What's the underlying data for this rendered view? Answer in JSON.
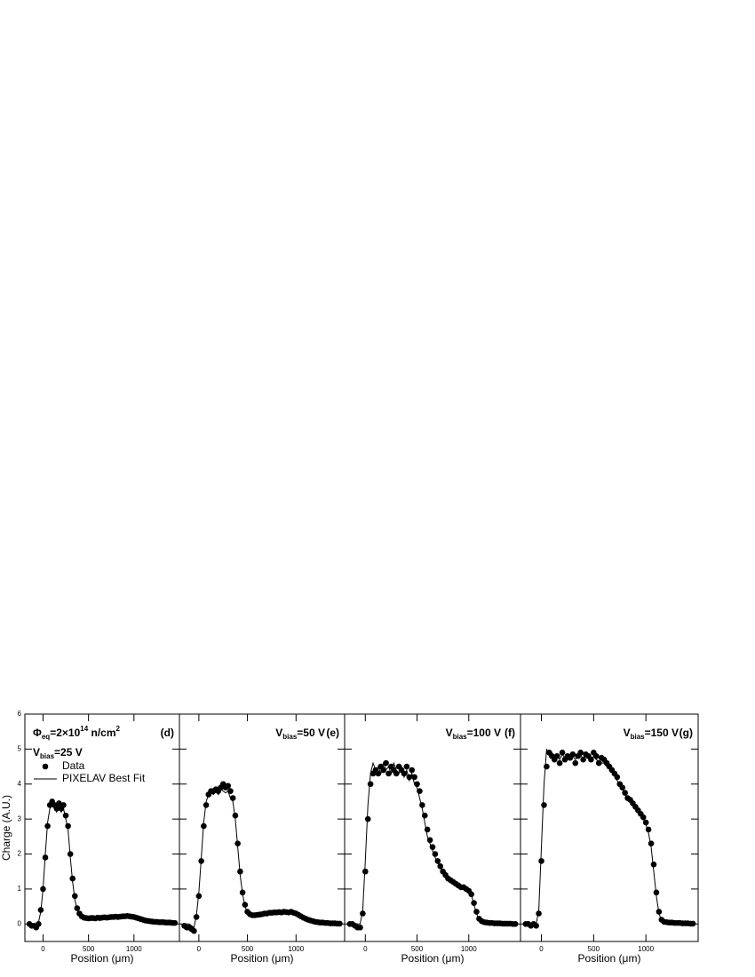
{
  "chart_data": [
    {
      "type": "scatter",
      "label": "(d)",
      "fluence": [
        {
          "text": "Φ"
        },
        {
          "text": "eq",
          "shift": "sub"
        },
        {
          "text": "=2×10"
        },
        {
          "text": "14",
          "shift": "sup"
        },
        {
          "text": " n/cm"
        },
        {
          "text": "2",
          "shift": "sup"
        }
      ],
      "bias": [
        {
          "text": "V"
        },
        {
          "text": "bias",
          "shift": "sub"
        },
        {
          "text": "=25 V"
        }
      ],
      "xlabel": "Position (μm)",
      "ylabel": "Charge (A.U.)",
      "legend": "upper left",
      "xlim": [
        -200,
        1500
      ],
      "ylim": [
        -0.5,
        6
      ],
      "xticks": [
        0,
        500,
        1000
      ],
      "yticks": [
        0,
        1,
        2,
        3,
        4,
        5,
        6
      ],
      "ytick_labels": true,
      "x": [
        -150,
        -125,
        -100,
        -75,
        -50,
        -25,
        0,
        25,
        50,
        75,
        100,
        125,
        150,
        175,
        200,
        225,
        250,
        275,
        300,
        325,
        350,
        375,
        400,
        425,
        450,
        475,
        500,
        525,
        550,
        575,
        600,
        625,
        650,
        675,
        700,
        725,
        750,
        775,
        800,
        825,
        850,
        875,
        900,
        925,
        950,
        975,
        1000,
        1025,
        1050,
        1075,
        1100,
        1125,
        1150,
        1175,
        1200,
        1225,
        1250,
        1275,
        1300,
        1325,
        1350,
        1375,
        1400,
        1425,
        1450
      ],
      "series": [
        {
          "name": "Data",
          "mark": "dot",
          "color": "#000000",
          "values": [
            0.0,
            -0.05,
            -0.05,
            -0.1,
            0.0,
            0.4,
            1.0,
            1.9,
            2.8,
            3.4,
            3.5,
            3.4,
            3.3,
            3.45,
            3.3,
            3.4,
            3.1,
            2.8,
            2.0,
            1.3,
            0.8,
            0.45,
            0.3,
            0.22,
            0.18,
            0.17,
            0.16,
            0.17,
            0.17,
            0.16,
            0.18,
            0.17,
            0.18,
            0.19,
            0.18,
            0.19,
            0.2,
            0.2,
            0.21,
            0.2,
            0.21,
            0.22,
            0.22,
            0.23,
            0.22,
            0.21,
            0.2,
            0.18,
            0.16,
            0.14,
            0.12,
            0.1,
            0.09,
            0.08,
            0.07,
            0.06,
            0.06,
            0.05,
            0.05,
            0.05,
            0.04,
            0.04,
            0.04,
            0.03,
            0.03
          ]
        },
        {
          "name": "PIXELAV Best Fit",
          "mark": "line",
          "color": "#000000",
          "values": [
            0,
            0,
            0,
            0,
            0.05,
            0.35,
            1.0,
            2.0,
            2.9,
            3.3,
            3.4,
            3.3,
            3.2,
            3.35,
            3.2,
            3.3,
            3.0,
            2.7,
            1.9,
            1.2,
            0.7,
            0.4,
            0.25,
            0.2,
            0.18,
            0.17,
            0.16,
            0.16,
            0.17,
            0.17,
            0.17,
            0.18,
            0.18,
            0.18,
            0.19,
            0.19,
            0.2,
            0.2,
            0.2,
            0.21,
            0.21,
            0.21,
            0.22,
            0.22,
            0.22,
            0.21,
            0.2,
            0.18,
            0.16,
            0.14,
            0.12,
            0.1,
            0.09,
            0.08,
            0.07,
            0.06,
            0.06,
            0.05,
            0.05,
            0.05,
            0.04,
            0.04,
            0.04,
            0.03,
            0.03
          ]
        }
      ]
    },
    {
      "type": "scatter",
      "label": "(e)",
      "bias": [
        {
          "text": "V"
        },
        {
          "text": "bias",
          "shift": "sub"
        },
        {
          "text": "=50 V"
        }
      ],
      "xlabel": "Position (μm)",
      "xlim": [
        -200,
        1500
      ],
      "ylim": [
        -0.5,
        6
      ],
      "xticks": [
        0,
        500,
        1000
      ],
      "yticks": [
        0,
        1,
        2,
        3,
        4,
        5,
        6
      ],
      "ytick_labels": false,
      "x": [
        -150,
        -125,
        -100,
        -75,
        -50,
        -25,
        0,
        25,
        50,
        75,
        100,
        125,
        150,
        175,
        200,
        225,
        250,
        275,
        300,
        325,
        350,
        375,
        400,
        425,
        450,
        475,
        500,
        525,
        550,
        575,
        600,
        625,
        650,
        675,
        700,
        725,
        750,
        775,
        800,
        825,
        850,
        875,
        900,
        925,
        950,
        975,
        1000,
        1025,
        1050,
        1075,
        1100,
        1125,
        1150,
        1175,
        1200,
        1225,
        1250,
        1275,
        1300,
        1325,
        1350,
        1375,
        1400,
        1425,
        1450
      ],
      "series": [
        {
          "mark": "dot",
          "color": "#000000",
          "values": [
            -0.05,
            -0.1,
            -0.1,
            -0.15,
            -0.2,
            0.2,
            0.8,
            1.8,
            2.8,
            3.4,
            3.7,
            3.8,
            3.8,
            3.85,
            3.8,
            3.9,
            4.0,
            3.9,
            3.95,
            3.8,
            3.6,
            3.1,
            2.3,
            1.5,
            0.9,
            0.55,
            0.35,
            0.28,
            0.25,
            0.25,
            0.26,
            0.27,
            0.28,
            0.3,
            0.3,
            0.32,
            0.32,
            0.33,
            0.33,
            0.34,
            0.33,
            0.35,
            0.34,
            0.33,
            0.35,
            0.32,
            0.3,
            0.26,
            0.22,
            0.18,
            0.15,
            0.12,
            0.1,
            0.08,
            0.06,
            0.05,
            0.04,
            0.04,
            0.03,
            0.03,
            0.02,
            0.02,
            0.02,
            0.01,
            0.01
          ]
        },
        {
          "mark": "line",
          "color": "#000000",
          "values": [
            0,
            0,
            0,
            -0.05,
            -0.1,
            0.25,
            0.9,
            1.9,
            2.9,
            3.5,
            3.7,
            3.75,
            3.7,
            3.8,
            3.7,
            3.85,
            3.8,
            3.75,
            3.8,
            3.6,
            3.5,
            3.0,
            2.2,
            1.4,
            0.85,
            0.5,
            0.33,
            0.27,
            0.25,
            0.25,
            0.26,
            0.27,
            0.28,
            0.29,
            0.3,
            0.31,
            0.32,
            0.32,
            0.33,
            0.33,
            0.33,
            0.34,
            0.33,
            0.33,
            0.33,
            0.31,
            0.29,
            0.25,
            0.21,
            0.17,
            0.14,
            0.11,
            0.09,
            0.07,
            0.06,
            0.05,
            0.04,
            0.04,
            0.03,
            0.03,
            0.02,
            0.02,
            0.02,
            0.01,
            0.01
          ]
        }
      ]
    },
    {
      "type": "scatter",
      "label": "(f)",
      "bias": [
        {
          "text": "V"
        },
        {
          "text": "bias",
          "shift": "sub"
        },
        {
          "text": "=100 V"
        }
      ],
      "xlabel": "Position (μm)",
      "xlim": [
        -200,
        1500
      ],
      "ylim": [
        -0.5,
        6
      ],
      "xticks": [
        0,
        500,
        1000
      ],
      "yticks": [
        0,
        1,
        2,
        3,
        4,
        5,
        6
      ],
      "ytick_labels": false,
      "x": [
        -150,
        -125,
        -100,
        -75,
        -50,
        -25,
        0,
        25,
        50,
        75,
        100,
        125,
        150,
        175,
        200,
        225,
        250,
        275,
        300,
        325,
        350,
        375,
        400,
        425,
        450,
        475,
        500,
        525,
        550,
        575,
        600,
        625,
        650,
        675,
        700,
        725,
        750,
        775,
        800,
        825,
        850,
        875,
        900,
        925,
        950,
        975,
        1000,
        1025,
        1050,
        1075,
        1100,
        1125,
        1150,
        1175,
        1200,
        1225,
        1250,
        1275,
        1300,
        1325,
        1350,
        1375,
        1400,
        1425,
        1450
      ],
      "series": [
        {
          "mark": "dot",
          "color": "#000000",
          "values": [
            0.0,
            0.0,
            -0.05,
            -0.1,
            -0.1,
            0.3,
            1.5,
            3.0,
            4.0,
            4.3,
            4.4,
            4.3,
            4.5,
            4.4,
            4.6,
            4.3,
            4.5,
            4.4,
            4.3,
            4.5,
            4.4,
            4.3,
            4.5,
            4.2,
            4.4,
            4.2,
            4.0,
            3.8,
            3.4,
            3.1,
            2.7,
            2.4,
            2.2,
            2.0,
            1.8,
            1.65,
            1.5,
            1.4,
            1.3,
            1.25,
            1.2,
            1.15,
            1.1,
            1.05,
            1.05,
            1.0,
            0.95,
            0.85,
            0.6,
            0.35,
            0.15,
            0.08,
            0.05,
            0.04,
            0.03,
            0.03,
            0.02,
            0.02,
            0.02,
            0.01,
            0.01,
            0.01,
            0.01,
            0.0,
            0.0
          ]
        },
        {
          "mark": "line",
          "color": "#000000",
          "values": [
            0,
            0,
            0,
            0,
            0,
            0.4,
            1.8,
            3.4,
            4.3,
            4.6,
            4.4,
            4.5,
            4.3,
            4.6,
            4.4,
            4.5,
            4.3,
            4.6,
            4.4,
            4.3,
            4.5,
            4.2,
            4.4,
            4.1,
            4.3,
            4.0,
            3.9,
            3.6,
            3.3,
            2.9,
            2.5,
            2.3,
            2.1,
            1.9,
            1.75,
            1.6,
            1.5,
            1.4,
            1.3,
            1.25,
            1.2,
            1.2,
            1.15,
            1.1,
            1.1,
            1.05,
            1.0,
            0.85,
            0.55,
            0.3,
            0.12,
            0.06,
            0.04,
            0.03,
            0.03,
            0.02,
            0.02,
            0.02,
            0.01,
            0.01,
            0.01,
            0.01,
            0,
            0,
            0
          ]
        }
      ]
    },
    {
      "type": "scatter",
      "label": "(g)",
      "bias": [
        {
          "text": "V"
        },
        {
          "text": "bias",
          "shift": "sub"
        },
        {
          "text": "=150 V"
        }
      ],
      "xlabel": "Position (μm)",
      "xlim": [
        -200,
        1500
      ],
      "ylim": [
        -0.5,
        6
      ],
      "xticks": [
        0,
        500,
        1000
      ],
      "yticks": [
        0,
        1,
        2,
        3,
        4,
        5,
        6
      ],
      "ytick_labels": false,
      "x": [
        -150,
        -125,
        -100,
        -75,
        -50,
        -25,
        0,
        25,
        50,
        75,
        100,
        125,
        150,
        175,
        200,
        225,
        250,
        275,
        300,
        325,
        350,
        375,
        400,
        425,
        450,
        475,
        500,
        525,
        550,
        575,
        600,
        625,
        650,
        675,
        700,
        725,
        750,
        775,
        800,
        825,
        850,
        875,
        900,
        925,
        950,
        975,
        1000,
        1025,
        1050,
        1075,
        1100,
        1125,
        1150,
        1175,
        1200,
        1225,
        1250,
        1275,
        1300,
        1325,
        1350,
        1375,
        1400,
        1425,
        1450
      ],
      "series": [
        {
          "mark": "dot",
          "color": "#000000",
          "values": [
            0.0,
            0.0,
            -0.05,
            0.0,
            -0.05,
            0.3,
            1.8,
            3.4,
            4.5,
            4.9,
            4.8,
            4.7,
            4.8,
            4.6,
            4.9,
            4.7,
            4.8,
            4.75,
            4.85,
            4.6,
            4.8,
            4.9,
            4.7,
            4.85,
            4.8,
            4.7,
            4.9,
            4.8,
            4.6,
            4.75,
            4.7,
            4.6,
            4.5,
            4.4,
            4.3,
            4.2,
            4.0,
            3.9,
            3.75,
            3.6,
            3.55,
            3.45,
            3.35,
            3.25,
            3.15,
            3.05,
            2.9,
            2.7,
            2.3,
            1.7,
            0.9,
            0.35,
            0.12,
            0.06,
            0.05,
            0.04,
            0.04,
            0.03,
            0.03,
            0.03,
            0.02,
            0.02,
            0.02,
            0.01,
            0.01
          ]
        },
        {
          "mark": "line",
          "color": "#000000",
          "values": [
            0,
            0,
            0,
            0,
            0,
            0.4,
            2.2,
            4.0,
            5.0,
            4.8,
            4.9,
            4.7,
            4.8,
            4.7,
            4.85,
            4.75,
            4.8,
            4.7,
            4.8,
            4.7,
            4.8,
            4.85,
            4.7,
            4.8,
            4.75,
            4.7,
            4.8,
            4.7,
            4.65,
            4.6,
            4.6,
            4.5,
            4.45,
            4.35,
            4.25,
            4.1,
            3.95,
            3.85,
            3.7,
            3.55,
            3.5,
            3.4,
            3.3,
            3.2,
            3.1,
            3.0,
            2.85,
            2.6,
            2.2,
            1.5,
            0.8,
            0.3,
            0.1,
            0.05,
            0.04,
            0.04,
            0.03,
            0.03,
            0.03,
            0.02,
            0.02,
            0.02,
            0.01,
            0.01,
            0.01
          ]
        }
      ]
    }
  ]
}
